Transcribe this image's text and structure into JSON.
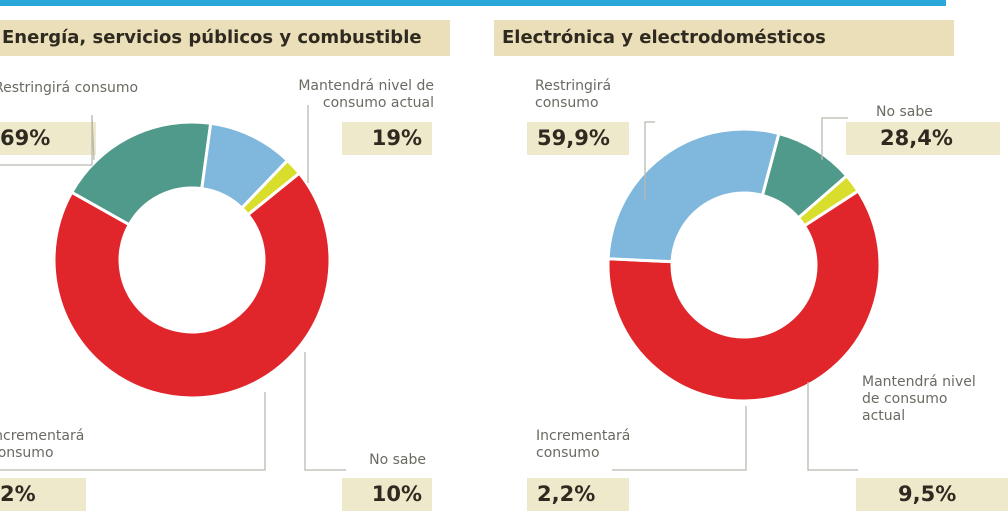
{
  "chart_data": [
    {
      "type": "pie",
      "title": "Energía, servicios públicos y combustible",
      "slices": [
        {
          "label": "Restringirá consumo",
          "value_label": "69%",
          "value": 69,
          "color": "#e0262b"
        },
        {
          "label": "Mantendrá nivel de consumo actual",
          "value_label": "19%",
          "value": 19,
          "color": "#4f9a8a"
        },
        {
          "label": "No sabe",
          "value_label": "10%",
          "value": 10,
          "color": "#7fb7dd"
        },
        {
          "label": "Incrementará consumo",
          "value_label": "2%",
          "value": 2,
          "color": "#d9dd2c"
        }
      ]
    },
    {
      "type": "pie",
      "title": "Electrónica y electrodomésticos",
      "slices": [
        {
          "label": "Restringirá consumo",
          "value_label": "59,9%",
          "value": 59.9,
          "color": "#e0262b"
        },
        {
          "label": "No sabe",
          "value_label": "28,4%",
          "value": 28.4,
          "color": "#7fb7dd"
        },
        {
          "label": "Mantendrá nivel de consumo actual",
          "value_label": "9,5%",
          "value": 9.5,
          "color": "#4f9a8a"
        },
        {
          "label": "Incrementará consumo",
          "value_label": "2,2%",
          "value": 2.2,
          "color": "#d9dd2c"
        }
      ]
    }
  ]
}
